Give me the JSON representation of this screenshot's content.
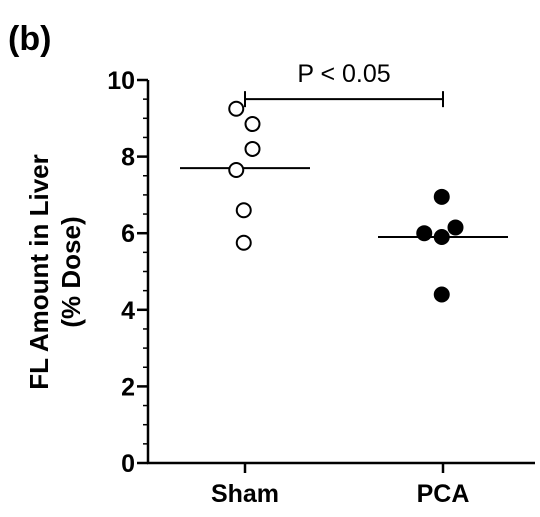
{
  "panel_label": "(b)",
  "chart_data": {
    "type": "scatter",
    "xlabel": "",
    "ylabel": [
      "FL Amount in Liver",
      "(% Dose)"
    ],
    "ylim": [
      0,
      10
    ],
    "yticks": [
      0,
      2,
      4,
      6,
      8,
      10
    ],
    "yticklabels": [
      "0",
      "2",
      "4",
      "6",
      "8",
      "10"
    ],
    "y_minor_step": 0.5,
    "grid": false,
    "categories": [
      "Sham",
      "PCA"
    ],
    "series": [
      {
        "category": "Sham",
        "marker": "open-circle",
        "points": [
          {
            "x_offset": -0.35,
            "y": 9.25
          },
          {
            "x_offset": 0.3,
            "y": 8.85
          },
          {
            "x_offset": 0.3,
            "y": 8.2
          },
          {
            "x_offset": -0.35,
            "y": 7.65
          },
          {
            "x_offset": -0.05,
            "y": 6.6
          },
          {
            "x_offset": -0.05,
            "y": 5.75
          }
        ],
        "mean": 7.7
      },
      {
        "category": "PCA",
        "marker": "filled-circle",
        "points": [
          {
            "x_offset": -0.05,
            "y": 6.95
          },
          {
            "x_offset": 0.5,
            "y": 6.15
          },
          {
            "x_offset": -0.75,
            "y": 6.0
          },
          {
            "x_offset": -0.05,
            "y": 5.9
          },
          {
            "x_offset": -0.05,
            "y": 4.4
          }
        ],
        "mean": 5.9
      }
    ],
    "annotation": {
      "text": "P < 0.05",
      "bracket_y": 9.5,
      "from": "Sham",
      "to": "PCA"
    }
  }
}
